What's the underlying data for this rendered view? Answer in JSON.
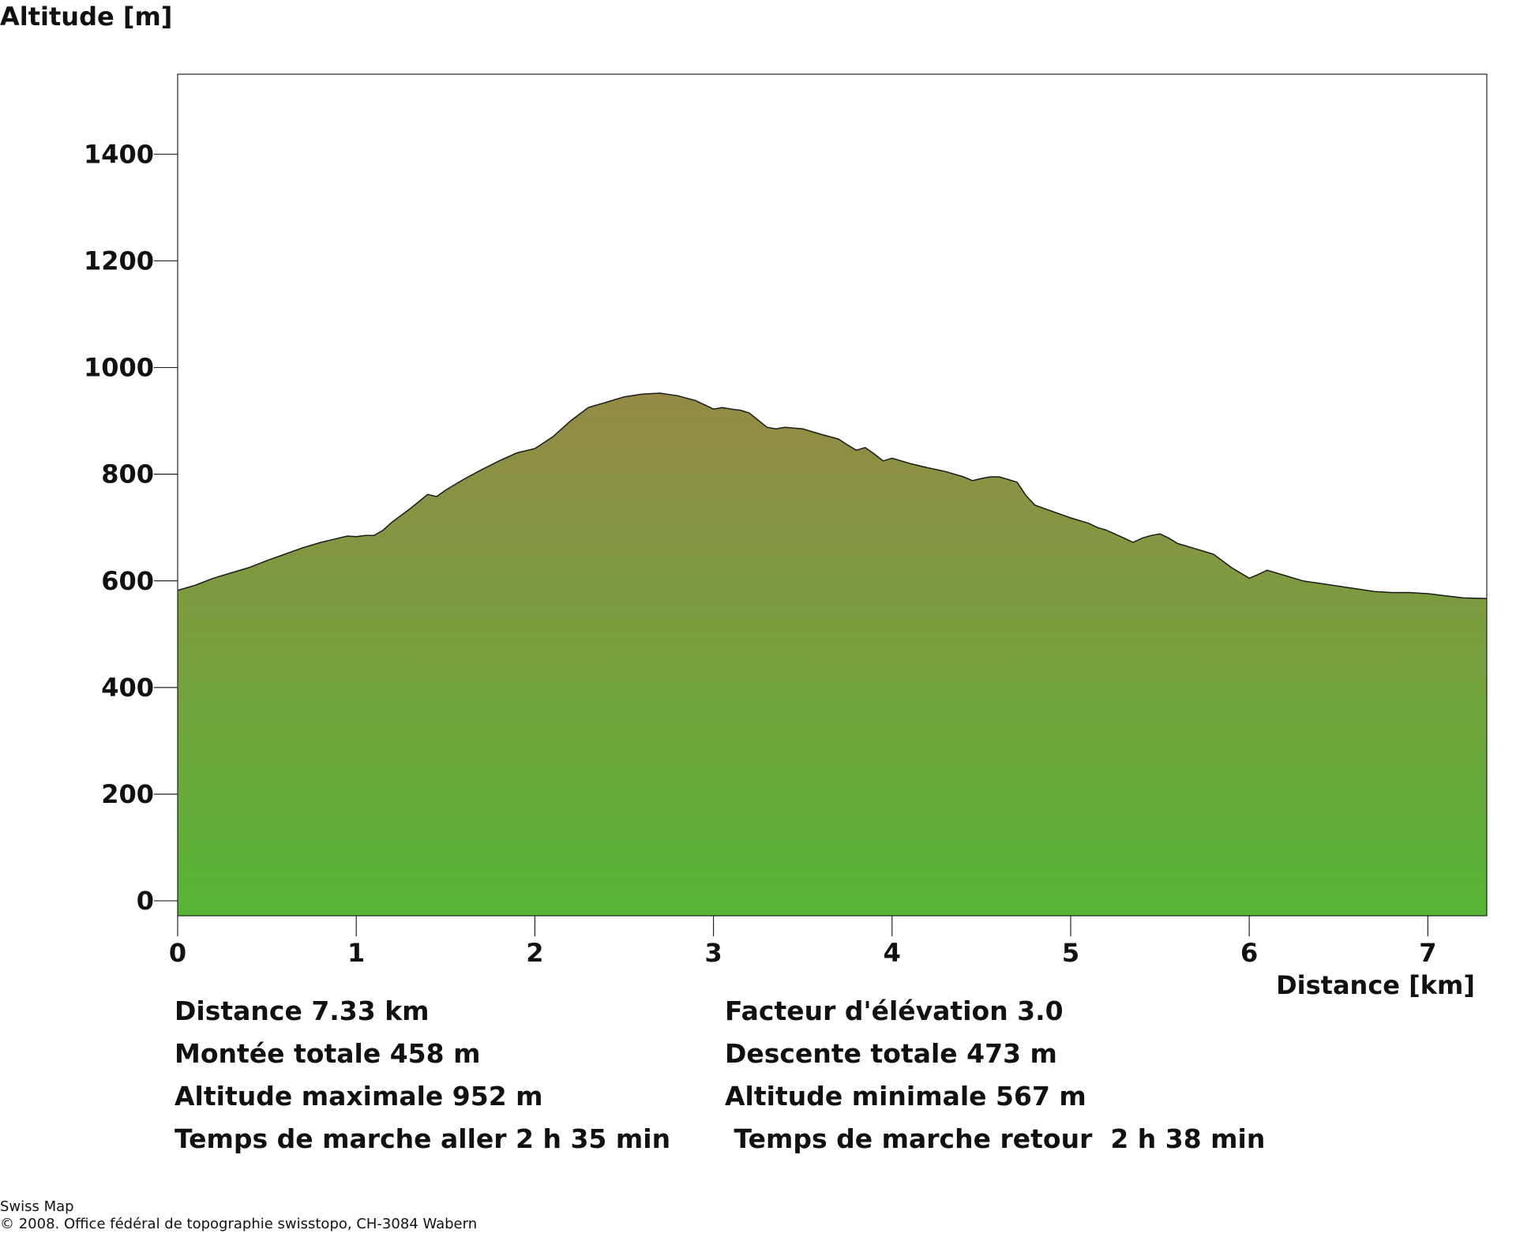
{
  "chart_data": {
    "type": "area",
    "y_axis_title": "Altitude [m]",
    "x_axis_title": "Distance [km]",
    "xlim": [
      0,
      7.33
    ],
    "ylim": [
      -28,
      1550
    ],
    "x_ticks": [
      0,
      1,
      2,
      3,
      4,
      5,
      6,
      7
    ],
    "y_ticks": [
      0,
      200,
      400,
      600,
      800,
      1000,
      1200,
      1400
    ],
    "fill_gradient": {
      "top": "#948a45",
      "bottom": "#58b536"
    },
    "grid": false,
    "legend": "none",
    "x": [
      0,
      0.1,
      0.2,
      0.3,
      0.4,
      0.5,
      0.6,
      0.7,
      0.8,
      0.9,
      0.95,
      1.0,
      1.05,
      1.1,
      1.15,
      1.2,
      1.3,
      1.4,
      1.45,
      1.5,
      1.6,
      1.7,
      1.8,
      1.9,
      2.0,
      2.1,
      2.2,
      2.3,
      2.4,
      2.5,
      2.6,
      2.7,
      2.8,
      2.9,
      2.95,
      3.0,
      3.05,
      3.1,
      3.15,
      3.2,
      3.3,
      3.35,
      3.4,
      3.5,
      3.6,
      3.7,
      3.75,
      3.8,
      3.85,
      3.9,
      3.95,
      4.0,
      4.1,
      4.2,
      4.3,
      4.4,
      4.45,
      4.5,
      4.55,
      4.6,
      4.65,
      4.7,
      4.75,
      4.8,
      4.9,
      5.0,
      5.1,
      5.15,
      5.2,
      5.3,
      5.35,
      5.4,
      5.45,
      5.5,
      5.55,
      5.6,
      5.65,
      5.7,
      5.75,
      5.8,
      5.9,
      6.0,
      6.05,
      6.1,
      6.2,
      6.3,
      6.4,
      6.5,
      6.6,
      6.7,
      6.8,
      6.9,
      7.0,
      7.1,
      7.2,
      7.33
    ],
    "y": [
      582,
      592,
      605,
      615,
      625,
      638,
      650,
      662,
      672,
      680,
      684,
      683,
      685,
      685,
      695,
      710,
      735,
      762,
      758,
      770,
      790,
      808,
      825,
      840,
      848,
      870,
      900,
      925,
      935,
      945,
      950,
      952,
      947,
      938,
      930,
      922,
      925,
      922,
      920,
      915,
      888,
      885,
      888,
      885,
      875,
      866,
      855,
      845,
      850,
      838,
      825,
      830,
      820,
      812,
      805,
      795,
      788,
      792,
      795,
      795,
      790,
      785,
      760,
      742,
      730,
      718,
      708,
      700,
      695,
      680,
      672,
      680,
      685,
      688,
      680,
      670,
      665,
      660,
      655,
      650,
      625,
      605,
      612,
      620,
      610,
      600,
      595,
      590,
      585,
      580,
      578,
      578,
      576,
      572,
      568,
      567
    ]
  },
  "stats": {
    "left": [
      "Distance 7.33 km",
      "Montée totale  458 m",
      "Altitude maximale  952 m",
      "Temps de marche aller  2 h 35 min"
    ],
    "right": [
      "Facteur d'élévation 3.0",
      "Descente totale  473 m",
      "Altitude minimale  567 m",
      " Temps de marche retour  2 h 38 min"
    ]
  },
  "footer": {
    "line1": "Swiss Map",
    "line2": "© 2008. Office fédéral de topographie swisstopo, CH-3084 Wabern"
  }
}
